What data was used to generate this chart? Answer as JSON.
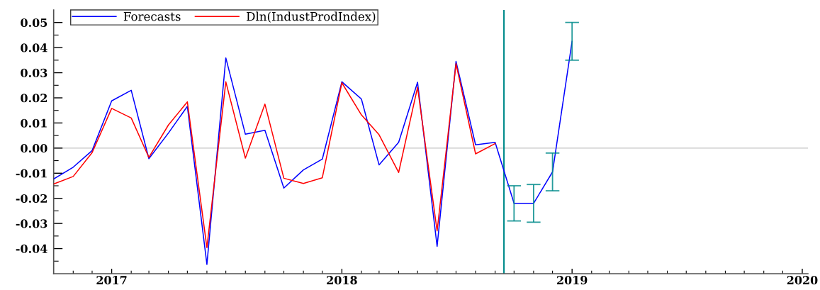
{
  "chart_data": {
    "type": "line",
    "x": [
      "2016-10",
      "2016-11",
      "2016-12",
      "2017-01",
      "2017-02",
      "2017-03",
      "2017-04",
      "2017-05",
      "2017-06",
      "2017-07",
      "2017-08",
      "2017-09",
      "2017-10",
      "2017-11",
      "2017-12",
      "2018-01",
      "2018-02",
      "2018-03",
      "2018-04",
      "2018-05",
      "2018-06",
      "2018-07",
      "2018-08",
      "2018-09",
      "2018-10",
      "2018-11",
      "2018-12",
      "2019-01"
    ],
    "series": [
      {
        "name": "Forecasts",
        "color": "#0000ff",
        "values": [
          -0.0123,
          -0.0076,
          -0.001,
          0.0188,
          0.023,
          -0.0042,
          0.006,
          0.0166,
          -0.0463,
          0.0359,
          0.0055,
          0.0071,
          -0.0159,
          -0.0087,
          -0.0044,
          0.0264,
          0.0195,
          -0.0067,
          0.0023,
          0.0262,
          -0.0391,
          0.0345,
          0.0013,
          0.0023,
          -0.022,
          -0.022,
          -0.0095,
          0.0425
        ],
        "errors": [
          null,
          null,
          null,
          null,
          null,
          null,
          null,
          null,
          null,
          null,
          null,
          null,
          null,
          null,
          null,
          null,
          null,
          null,
          null,
          null,
          null,
          null,
          null,
          null,
          0.007,
          0.0075,
          0.0075,
          0.0075
        ]
      },
      {
        "name": "Dln(IndustProdIndex)",
        "color": "#ff0000",
        "values": [
          -0.0143,
          -0.0113,
          -0.0018,
          0.0158,
          0.012,
          -0.0037,
          0.0092,
          0.0184,
          -0.0396,
          0.0264,
          -0.004,
          0.0175,
          -0.012,
          -0.0141,
          -0.0118,
          0.026,
          0.0132,
          0.0053,
          -0.0097,
          0.0242,
          -0.033,
          0.0336,
          -0.0023,
          0.0018,
          null,
          null,
          null,
          null
        ]
      }
    ],
    "xlim": [
      "2016-10-01",
      "2020-01-10"
    ],
    "xticks": [
      {
        "value": "2016-11",
        "label": null
      },
      {
        "value": "2016-12",
        "label": null
      },
      "2017",
      {
        "value": "2017-02",
        "label": null
      },
      {
        "value": "2017-03",
        "label": null
      },
      {
        "value": "2017-04",
        "label": null
      },
      {
        "value": "2017-05",
        "label": null
      },
      {
        "value": "2017-06",
        "label": null
      },
      {
        "value": "2017-07",
        "label": null
      },
      {
        "value": "2017-08",
        "label": null
      },
      {
        "value": "2017-09",
        "label": null
      },
      {
        "value": "2017-10",
        "label": null
      },
      {
        "value": "2017-11",
        "label": null
      },
      {
        "value": "2017-12",
        "label": null
      },
      "2018",
      {
        "value": "2018-02",
        "label": null
      },
      {
        "value": "2018-03",
        "label": null
      },
      {
        "value": "2018-04",
        "label": null
      },
      {
        "value": "2018-05",
        "label": null
      },
      {
        "value": "2018-06",
        "label": null
      },
      {
        "value": "2018-07",
        "label": null
      },
      {
        "value": "2018-08",
        "label": null
      },
      {
        "value": "2018-09",
        "label": null
      },
      {
        "value": "2018-10",
        "label": null
      },
      {
        "value": "2018-11",
        "label": null
      },
      {
        "value": "2018-12",
        "label": null
      },
      "2019",
      {
        "value": "2019-02",
        "label": null
      },
      {
        "value": "2019-03",
        "label": null
      },
      {
        "value": "2019-04",
        "label": null
      },
      {
        "value": "2019-05",
        "label": null
      },
      {
        "value": "2019-06",
        "label": null
      },
      {
        "value": "2019-07",
        "label": null
      },
      {
        "value": "2019-08",
        "label": null
      },
      {
        "value": "2019-09",
        "label": null
      },
      {
        "value": "2019-10",
        "label": null
      },
      {
        "value": "2019-11",
        "label": null
      },
      {
        "value": "2019-12",
        "label": null
      },
      "2020"
    ],
    "ylim": [
      -0.05,
      0.055
    ],
    "yticks": [
      -0.04,
      {
        "value": -0.045,
        "label": null
      },
      -0.03,
      {
        "value": -0.035,
        "label": null
      },
      -0.02,
      {
        "value": -0.025,
        "label": null
      },
      -0.01,
      {
        "value": -0.015,
        "label": null
      },
      {
        "value": 0,
        "label": "0.00"
      },
      {
        "value": -0.005,
        "label": null
      },
      0.01,
      {
        "value": 0.005,
        "label": null
      },
      0.02,
      {
        "value": 0.015,
        "label": null
      },
      0.03,
      {
        "value": 0.025,
        "label": null
      },
      0.04,
      {
        "value": 0.035,
        "label": null
      },
      0.05,
      {
        "value": 0.045,
        "label": null
      }
    ],
    "ref_lines": [
      {
        "axis": "y",
        "value": 0,
        "color": "#c4c4c4"
      },
      {
        "axis": "x",
        "value": "2018-09-15",
        "color": "#008b8b"
      }
    ],
    "legend": "top left"
  }
}
